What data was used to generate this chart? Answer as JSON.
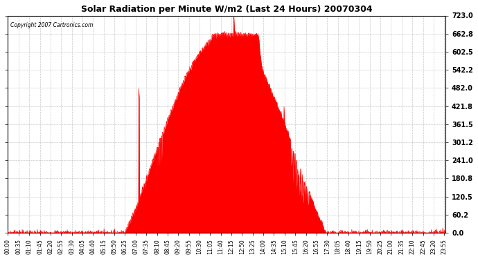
{
  "title": "Solar Radiation per Minute W/m2 (Last 24 Hours) 20070304",
  "copyright_text": "Copyright 2007 Cartronics.com",
  "fill_color": "#FF0000",
  "line_color": "#FF0000",
  "background_color": "#FFFFFF",
  "plot_bg_color": "#FFFFFF",
  "grid_color": "#BBBBBB",
  "dashed_line_color": "#FF0000",
  "y_ticks": [
    0.0,
    60.2,
    120.5,
    180.8,
    241.0,
    301.2,
    361.5,
    421.8,
    482.0,
    542.2,
    602.5,
    662.8,
    723.0
  ],
  "y_max": 723.0,
  "y_min": 0.0,
  "x_tick_interval": 35,
  "x_tick_labels": [
    "00:00",
    "00:35",
    "01:10",
    "01:45",
    "02:20",
    "02:55",
    "03:30",
    "04:05",
    "04:40",
    "05:15",
    "05:50",
    "06:25",
    "07:00",
    "07:35",
    "08:10",
    "08:45",
    "09:20",
    "09:55",
    "10:30",
    "11:05",
    "11:40",
    "12:15",
    "12:50",
    "13:25",
    "14:00",
    "14:35",
    "15:10",
    "15:45",
    "16:20",
    "16:55",
    "17:30",
    "18:05",
    "18:40",
    "19:15",
    "19:50",
    "20:25",
    "21:00",
    "21:35",
    "22:10",
    "22:45",
    "23:20",
    "23:55"
  ],
  "figsize": [
    6.9,
    3.75
  ],
  "dpi": 100
}
